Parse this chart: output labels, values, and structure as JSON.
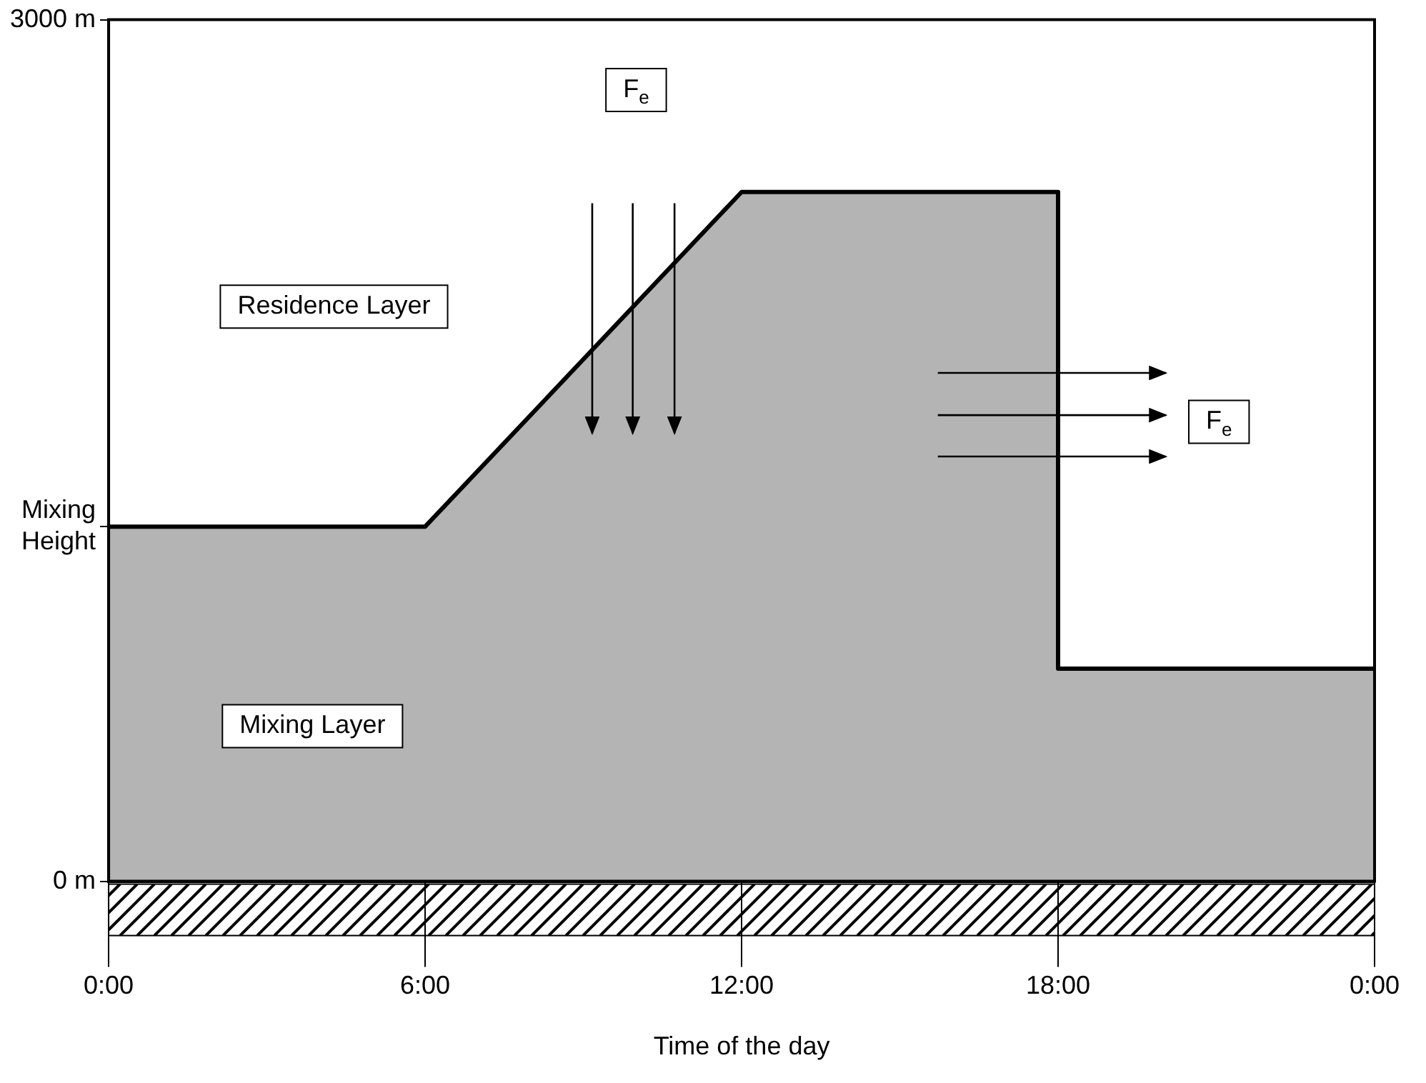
{
  "chart_data": {
    "type": "area",
    "xlabel": "Time of the day",
    "x": [
      0,
      6,
      12,
      18,
      18,
      24
    ],
    "values": [
      1235,
      1235,
      2400,
      2400,
      740,
      740
    ],
    "color": "#b4b4b4",
    "xlim": [
      0,
      24
    ],
    "ylim": [
      0,
      3000
    ],
    "xticks": [
      {
        "value": 0,
        "label": "0:00"
      },
      {
        "value": 6,
        "label": "6:00"
      },
      {
        "value": 12,
        "label": "12:00"
      },
      {
        "value": 18,
        "label": "18:00"
      },
      {
        "value": 24,
        "label": "0:00"
      }
    ],
    "yticks": [
      {
        "value": 0,
        "label": "0 m"
      },
      {
        "value": 1235,
        "label": "Mixing Height"
      },
      {
        "value": 3000,
        "label": "3000 m"
      }
    ],
    "grid": false,
    "legend": false,
    "annotations": [
      "Residence Layer",
      "Mixing Layer",
      {
        "text": "F$_{e}$",
        "x": 10,
        "y": 2755
      },
      {
        "text": "F$_{e}$",
        "x": 21.05,
        "y": 1600
      }
    ]
  }
}
